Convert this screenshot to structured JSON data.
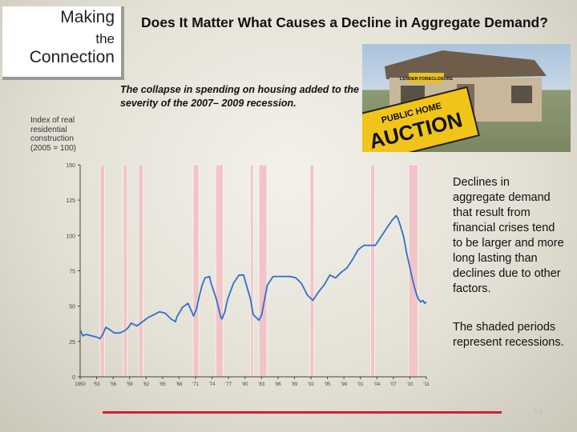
{
  "badge": {
    "line1": "Making",
    "line2": "the",
    "line3": "Connection"
  },
  "title": "Does It Matter What Causes a Decline in Aggregate Demand?",
  "photo": {
    "sign1": "LENDER FORECLOSURE",
    "sign2": "PUBLIC HOME",
    "sign3": "AUCTION"
  },
  "caption": "The collapse in spending on housing added to the severity of the 2007– 2009 recession.",
  "side_text_1": "Declines in aggregate demand that result from financial crises tend to be larger and more long lasting than declines due to other factors.",
  "side_text_2": "The shaded periods represent recessions.",
  "page_number": "44",
  "colors": {
    "line": "#2f6fd2",
    "recession": "#f2c4c7",
    "accent_bar": "#d3202e"
  },
  "chart_data": {
    "type": "line",
    "ylabel": "Index of real residential construction (2005 = 100)",
    "ylim": [
      0,
      150
    ],
    "yticks": [
      "0",
      "25",
      "50",
      "75",
      "100",
      "125",
      "150"
    ],
    "xlim": [
      1950,
      2011
    ],
    "xticks": [
      "1950",
      "'53",
      "'56",
      "'59",
      "'62",
      "'65",
      "'68",
      "'71",
      "'74",
      "'77",
      "'80",
      "'83",
      "'86",
      "'89",
      "'92",
      "'95",
      "'98",
      "'01",
      "'04",
      "'07",
      "'10",
      "'11"
    ],
    "recessions": [
      [
        1953.5,
        1954.3
      ],
      [
        1957.6,
        1958.3
      ],
      [
        1960.3,
        1961.1
      ],
      [
        1969.9,
        1970.9
      ],
      [
        1973.9,
        1975.2
      ],
      [
        1980.0,
        1980.5
      ],
      [
        1981.5,
        1982.9
      ],
      [
        1990.5,
        1991.2
      ],
      [
        2001.2,
        2001.9
      ],
      [
        2007.9,
        2009.5
      ]
    ],
    "series": [
      {
        "x": [
          1950,
          1950.5,
          1951,
          1952,
          1953,
          1953.5,
          1954,
          1954.5,
          1955,
          1956,
          1957,
          1957.5,
          1958,
          1958.5,
          1959,
          1960,
          1961,
          1962,
          1963,
          1964,
          1965,
          1966,
          1966.8,
          1967,
          1968,
          1969,
          1970,
          1970.5,
          1971,
          1971.5,
          1972,
          1972.8,
          1973,
          1974,
          1974.8,
          1975,
          1975.5,
          1976,
          1977,
          1978,
          1978.8,
          1979,
          1980,
          1980.5,
          1981,
          1981.5,
          1982,
          1982.5,
          1983,
          1984,
          1985,
          1986,
          1987,
          1988,
          1989,
          1990,
          1991,
          1991.5,
          1992,
          1993,
          1994,
          1995,
          1996,
          1997,
          1998,
          1999,
          2000,
          2001,
          2002,
          2003,
          2004,
          2005,
          2005.7,
          2006,
          2006.5,
          2007,
          2007.5,
          2008,
          2008.5,
          2009,
          2009.3,
          2009.6,
          2010,
          2010.4,
          2010.7,
          2011
        ],
        "values": [
          33,
          29,
          30,
          29,
          28,
          27,
          30,
          35,
          34,
          31,
          31,
          32,
          33,
          35,
          38,
          36,
          39,
          42,
          44,
          46,
          45,
          41,
          39,
          42,
          49,
          52,
          43,
          48,
          57,
          65,
          70,
          71,
          67,
          55,
          42,
          41,
          46,
          55,
          66,
          72,
          72,
          69,
          55,
          44,
          42,
          40,
          44,
          55,
          65,
          71,
          71,
          71,
          71,
          70,
          66,
          58,
          54,
          57,
          60,
          65,
          72,
          70,
          74,
          77,
          83,
          90,
          93,
          93,
          93,
          99,
          105,
          111,
          114,
          112,
          106,
          99,
          88,
          79,
          70,
          62,
          58,
          55,
          53,
          54,
          52,
          53
        ]
      }
    ]
  }
}
